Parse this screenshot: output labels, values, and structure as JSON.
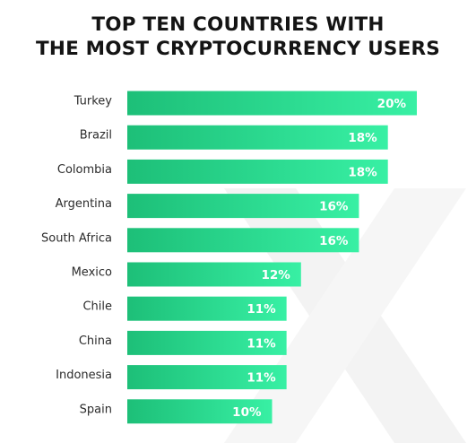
{
  "title_line1": "TOP TEN COUNTRIES WITH",
  "title_line2": "THE MOST CRYPTOCURRENCY USERS",
  "colors": {
    "bar_start": "#1dbf78",
    "bar_end": "#38f0a4",
    "background_mark": "#f2f2f2",
    "title": "#141414"
  },
  "chart_data": {
    "type": "bar",
    "orientation": "horizontal",
    "title": "TOP TEN COUNTRIES WITH THE MOST CRYPTOCURRENCY USERS",
    "categories": [
      "Turkey",
      "Brazil",
      "Colombia",
      "Argentina",
      "South Africa",
      "Mexico",
      "Chile",
      "China",
      "Indonesia",
      "Spain"
    ],
    "values": [
      20,
      18,
      18,
      16,
      16,
      12,
      11,
      11,
      11,
      10
    ],
    "value_labels": [
      "20%",
      "18%",
      "18%",
      "16%",
      "16%",
      "12%",
      "11%",
      "11%",
      "11%",
      "10%"
    ],
    "unit": "%",
    "grid": false,
    "legend": "none"
  }
}
